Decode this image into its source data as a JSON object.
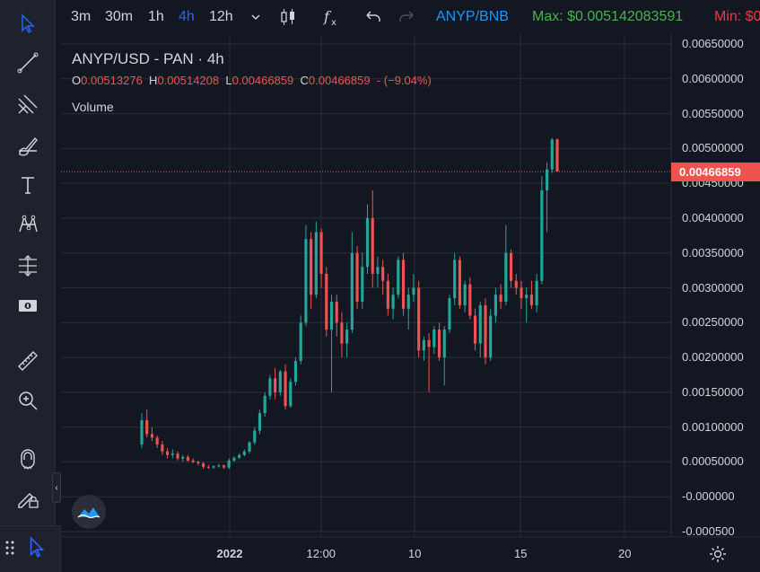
{
  "toolbar": {
    "timeframes": [
      "3m",
      "30m",
      "1h",
      "4h",
      "12h"
    ],
    "active_timeframe": "4h",
    "compare_symbol": "ANYP/BNB",
    "max_label": "Max: $0.005142083591",
    "min_label": "Min: $0"
  },
  "legend": {
    "title": "ANYP/USD - PAN · 4h",
    "open_key": "O",
    "open": "0.00513276",
    "high_key": "H",
    "high": "0.00514208",
    "low_key": "L",
    "low": "0.00466859",
    "close_key": "C",
    "close": "0.00466859",
    "change": "- (−9.04%)",
    "volume": "Volume"
  },
  "price_axis": {
    "ticks": [
      "0.00650000",
      "0.00600000",
      "0.00550000",
      "0.00500000",
      "0.00450000",
      "0.00400000",
      "0.00350000",
      "0.00300000",
      "0.00250000",
      "0.00200000",
      "0.00150000",
      "0.00100000",
      "0.00050000",
      "-0.000000",
      "-0.000500"
    ],
    "tick_values": [
      0.0065,
      0.006,
      0.0055,
      0.005,
      0.0045,
      0.004,
      0.0035,
      0.003,
      0.0025,
      0.002,
      0.0015,
      0.001,
      0.0005,
      0,
      -0.0005
    ],
    "current_price": "0.00466859",
    "current_value": 0.00466859
  },
  "time_axis": {
    "ticks": [
      {
        "label": "2022",
        "bold": true
      },
      {
        "label": "12:00",
        "bold": false
      },
      {
        "label": "10",
        "bold": false
      },
      {
        "label": "15",
        "bold": false
      },
      {
        "label": "20",
        "bold": false
      }
    ]
  },
  "colors": {
    "background": "#131722",
    "up": "#26a69a",
    "down": "#ef5350",
    "accent": "#2962ff",
    "compare": "#2196f3",
    "max": "#4caf50",
    "min": "#f23645",
    "grid": "#2a2e39"
  },
  "icons": {
    "left_toolbar": [
      "cursor-icon",
      "trend-line-icon",
      "pitchfork-icon",
      "brush-icon",
      "text-icon",
      "pattern-icon",
      "measure-icon",
      "price-note-icon",
      "ruler-icon",
      "zoom-icon",
      "magnet-icon",
      "lock-drawing-icon"
    ],
    "top": [
      "chevron-down-icon",
      "candles-icon",
      "indicators-icon",
      "undo-icon",
      "redo-icon"
    ],
    "bottom": [
      "grid-dots-icon",
      "cursor-icon",
      "settings-icon",
      "watermark-logo-icon"
    ]
  },
  "chart_data": {
    "type": "candlestick",
    "title": "ANYP/USD - PAN · 4h",
    "xlabel": "",
    "ylabel": "",
    "ylim": [
      -0.0005,
      0.0065
    ],
    "x_ticks": [
      "2022",
      "12:00",
      "10",
      "15",
      "20"
    ],
    "grid": true,
    "last_candle": {
      "open": 0.00513276,
      "high": 0.00514208,
      "low": 0.00466859,
      "close": 0.00466859
    },
    "candles": [
      [
        0.00075,
        0.0012,
        0.0007,
        0.0011
      ],
      [
        0.0011,
        0.00125,
        0.00085,
        0.0009
      ],
      [
        0.0009,
        0.001,
        0.0008,
        0.00085
      ],
      [
        0.00085,
        0.00088,
        0.0007,
        0.00075
      ],
      [
        0.00075,
        0.0008,
        0.0006,
        0.00065
      ],
      [
        0.00065,
        0.0007,
        0.00055,
        0.0006
      ],
      [
        0.0006,
        0.00068,
        0.00055,
        0.00062
      ],
      [
        0.00062,
        0.00065,
        0.00052,
        0.00055
      ],
      [
        0.00055,
        0.0006,
        0.0005,
        0.00057
      ],
      [
        0.00057,
        0.0006,
        0.0005,
        0.00052
      ],
      [
        0.00052,
        0.00055,
        0.00048,
        0.0005
      ],
      [
        0.0005,
        0.00052,
        0.00045,
        0.00048
      ],
      [
        0.00048,
        0.0005,
        0.0004,
        0.00043
      ],
      [
        0.00043,
        0.00046,
        0.0004,
        0.00042
      ],
      [
        0.00042,
        0.00045,
        0.0004,
        0.00044
      ],
      [
        0.00044,
        0.00047,
        0.00042,
        0.00045
      ],
      [
        0.00045,
        0.00046,
        0.0004,
        0.00042
      ],
      [
        0.00042,
        0.00055,
        0.0004,
        0.00052
      ],
      [
        0.00052,
        0.00058,
        0.0005,
        0.00056
      ],
      [
        0.00056,
        0.00062,
        0.00054,
        0.0006
      ],
      [
        0.0006,
        0.00068,
        0.00058,
        0.00065
      ],
      [
        0.00065,
        0.0008,
        0.00062,
        0.00078
      ],
      [
        0.00078,
        0.001,
        0.00075,
        0.00095
      ],
      [
        0.00095,
        0.00125,
        0.0009,
        0.0012
      ],
      [
        0.0012,
        0.0015,
        0.00115,
        0.00145
      ],
      [
        0.00145,
        0.00175,
        0.0014,
        0.0017
      ],
      [
        0.0017,
        0.00185,
        0.0014,
        0.0015
      ],
      [
        0.0015,
        0.00182,
        0.00145,
        0.0018
      ],
      [
        0.0018,
        0.0019,
        0.00125,
        0.0013
      ],
      [
        0.0013,
        0.0017,
        0.00128,
        0.00165
      ],
      [
        0.00165,
        0.002,
        0.0016,
        0.00195
      ],
      [
        0.00195,
        0.0026,
        0.0019,
        0.0025
      ],
      [
        0.0025,
        0.0039,
        0.00245,
        0.0037
      ],
      [
        0.0037,
        0.0038,
        0.0027,
        0.0029
      ],
      [
        0.0029,
        0.00395,
        0.00285,
        0.0038
      ],
      [
        0.0038,
        0.00385,
        0.003,
        0.0032
      ],
      [
        0.0032,
        0.0033,
        0.0023,
        0.0024
      ],
      [
        0.0024,
        0.0029,
        0.0015,
        0.0028
      ],
      [
        0.0028,
        0.0029,
        0.0023,
        0.0025
      ],
      [
        0.0025,
        0.00265,
        0.002,
        0.0022
      ],
      [
        0.0022,
        0.0025,
        0.002,
        0.0024
      ],
      [
        0.0024,
        0.0038,
        0.00235,
        0.0035
      ],
      [
        0.0035,
        0.0036,
        0.0027,
        0.0028
      ],
      [
        0.0028,
        0.0035,
        0.0027,
        0.0033
      ],
      [
        0.0033,
        0.0042,
        0.0032,
        0.004
      ],
      [
        0.004,
        0.0044,
        0.003,
        0.0032
      ],
      [
        0.0032,
        0.00345,
        0.003,
        0.0033
      ],
      [
        0.0033,
        0.0034,
        0.0029,
        0.0031
      ],
      [
        0.0031,
        0.0032,
        0.0026,
        0.0027
      ],
      [
        0.0027,
        0.003,
        0.00255,
        0.0029
      ],
      [
        0.0029,
        0.00345,
        0.00285,
        0.0034
      ],
      [
        0.0034,
        0.0035,
        0.0026,
        0.0027
      ],
      [
        0.0027,
        0.003,
        0.0024,
        0.0029
      ],
      [
        0.0029,
        0.0032,
        0.0028,
        0.003
      ],
      [
        0.003,
        0.0031,
        0.002,
        0.0021
      ],
      [
        0.0021,
        0.0023,
        0.00195,
        0.00225
      ],
      [
        0.00225,
        0.00235,
        0.0015,
        0.00215
      ],
      [
        0.00215,
        0.00245,
        0.00205,
        0.0024
      ],
      [
        0.0024,
        0.0025,
        0.00195,
        0.002
      ],
      [
        0.002,
        0.00245,
        0.0016,
        0.0024
      ],
      [
        0.0024,
        0.0029,
        0.00235,
        0.00285
      ],
      [
        0.00285,
        0.0035,
        0.00275,
        0.0034
      ],
      [
        0.0034,
        0.00345,
        0.0027,
        0.00275
      ],
      [
        0.00275,
        0.0031,
        0.00265,
        0.00305
      ],
      [
        0.00305,
        0.00315,
        0.00255,
        0.0026
      ],
      [
        0.0026,
        0.0027,
        0.0021,
        0.0022
      ],
      [
        0.0022,
        0.0028,
        0.002,
        0.00275
      ],
      [
        0.00275,
        0.00285,
        0.0019,
        0.002
      ],
      [
        0.002,
        0.0027,
        0.00195,
        0.0026
      ],
      [
        0.0026,
        0.003,
        0.0025,
        0.0029
      ],
      [
        0.0029,
        0.00305,
        0.0027,
        0.0028
      ],
      [
        0.0028,
        0.0039,
        0.00275,
        0.0035
      ],
      [
        0.0035,
        0.00355,
        0.003,
        0.0031
      ],
      [
        0.0031,
        0.0032,
        0.0029,
        0.003
      ],
      [
        0.003,
        0.0031,
        0.0027,
        0.00285
      ],
      [
        0.00285,
        0.003,
        0.0025,
        0.0029
      ],
      [
        0.0029,
        0.0031,
        0.0027,
        0.00275
      ],
      [
        0.00275,
        0.0032,
        0.00265,
        0.0031
      ],
      [
        0.0031,
        0.0046,
        0.00305,
        0.0044
      ],
      [
        0.0044,
        0.0048,
        0.0038,
        0.0047
      ],
      [
        0.0047,
        0.00515,
        0.00465,
        0.00513
      ],
      [
        0.00513276,
        0.00514208,
        0.00466859,
        0.00466859
      ]
    ]
  }
}
